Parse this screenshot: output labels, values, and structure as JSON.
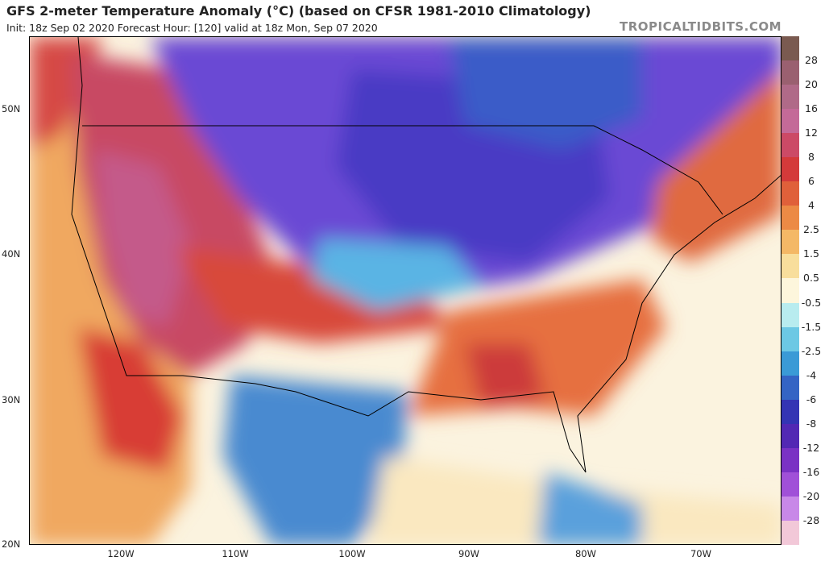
{
  "header": {
    "title": "GFS 2-meter Temperature Anomaly (°C) (based on CFSR 1981-2010 Climatology)",
    "subtitle": "Init: 18z Sep 02 2020   Forecast Hour: [120]   valid at 18z Mon, Sep 07 2020",
    "watermark": "TROPICALTIDBITS.COM"
  },
  "map": {
    "latitude_labels": [
      "50N",
      "40N",
      "30N",
      "20N"
    ],
    "longitude_labels": [
      "120W",
      "110W",
      "100W",
      "90W",
      "80W",
      "70W"
    ]
  },
  "colorbar": {
    "labels": [
      "28",
      "20",
      "16",
      "12",
      "8",
      "6",
      "4",
      "2.5",
      "1.5",
      "0.5",
      "-0.5",
      "-1.5",
      "-2.5",
      "-4",
      "-6",
      "-8",
      "-12",
      "-16",
      "-20",
      "-28"
    ],
    "colors": [
      "#7a5a50",
      "#9a6070",
      "#b06a88",
      "#c46a98",
      "#cc4a66",
      "#d43a3a",
      "#e0603a",
      "#ec8a45",
      "#f4b866",
      "#f8de9c",
      "#fdf6dc",
      "#b8ecef",
      "#6cc8e4",
      "#3a9ad6",
      "#3464c4",
      "#3434b4",
      "#5228b4",
      "#7a32c4",
      "#a050d8",
      "#c888e8",
      "#f2c8d8"
    ]
  }
}
